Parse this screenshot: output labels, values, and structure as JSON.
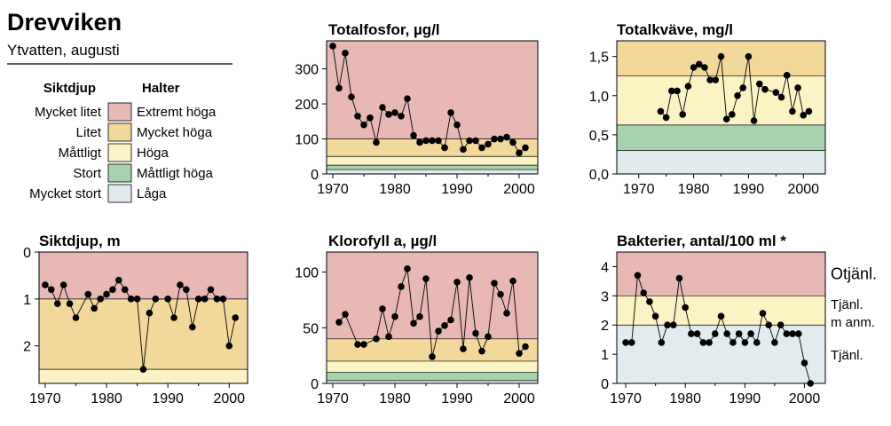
{
  "header": {
    "title": "Drevviken",
    "subtitle": "Ytvatten, augusti"
  },
  "legend": {
    "left_heading": "Siktdjup",
    "right_heading": "Halter",
    "rows": [
      {
        "left": "Mycket litet",
        "right": "Extremt höga",
        "color": "#e8b8b4"
      },
      {
        "left": "Litet",
        "right": "Mycket höga",
        "color": "#f3d89c"
      },
      {
        "left": "Måttligt",
        "right": "Höga",
        "color": "#fbf3c3"
      },
      {
        "left": "Stort",
        "right": "Måttligt höga",
        "color": "#a6d2ad"
      },
      {
        "left": "Mycket stort",
        "right": "Låga",
        "color": "#e1ebee"
      }
    ]
  },
  "colors": {
    "extremt": "#e8b8b4",
    "mycket": "#f3d89c",
    "hoga": "#fbf3c3",
    "mattligt": "#a6d2ad",
    "laga": "#e1ebee",
    "tjanl": "#e2ecef",
    "line": "#000000"
  },
  "chart_data": [
    {
      "id": "totalfosfor",
      "type": "line",
      "title": "Totalfosfor, µg/l",
      "xlim": [
        1969,
        2003
      ],
      "ylim": [
        0,
        380
      ],
      "xticks": [
        1970,
        1980,
        1990,
        2000
      ],
      "yticks": [
        0,
        100,
        200,
        300
      ],
      "ytick_labels": [
        "0",
        "100",
        "200",
        "300"
      ],
      "bands": [
        {
          "from": 0,
          "to": 12.5,
          "color": "laga"
        },
        {
          "from": 12.5,
          "to": 25,
          "color": "mattligt"
        },
        {
          "from": 25,
          "to": 50,
          "color": "hoga"
        },
        {
          "from": 50,
          "to": 100,
          "color": "mycket"
        },
        {
          "from": 100,
          "to": 380,
          "color": "extremt"
        }
      ],
      "x": [
        1970,
        1971,
        1972,
        1973,
        1974,
        1975,
        1976,
        1977,
        1978,
        1979,
        1980,
        1981,
        1982,
        1983,
        1984,
        1985,
        1986,
        1987,
        1988,
        1989,
        1990,
        1991,
        1992,
        1993,
        1994,
        1995,
        1996,
        1997,
        1998,
        1999,
        2000,
        2001
      ],
      "y": [
        365,
        245,
        345,
        220,
        165,
        140,
        160,
        90,
        190,
        170,
        175,
        165,
        215,
        110,
        90,
        95,
        95,
        95,
        75,
        175,
        140,
        70,
        95,
        95,
        75,
        85,
        100,
        100,
        105,
        90,
        60,
        75
      ]
    },
    {
      "id": "totalkvave",
      "type": "line",
      "title": "Totalkväve, mg/l",
      "xlim": [
        1966,
        2004
      ],
      "ylim": [
        0,
        1.7
      ],
      "xticks": [
        1970,
        1980,
        1990,
        2000
      ],
      "yticks": [
        0,
        0.5,
        1.0,
        1.5
      ],
      "ytick_labels": [
        "0,0",
        "0,5",
        "1,0",
        "1,5"
      ],
      "bands": [
        {
          "from": 0,
          "to": 0.3,
          "color": "laga"
        },
        {
          "from": 0.3,
          "to": 0.625,
          "color": "mattligt"
        },
        {
          "from": 0.625,
          "to": 1.25,
          "color": "hoga"
        },
        {
          "from": 1.25,
          "to": 1.7,
          "color": "mycket"
        }
      ],
      "x": [
        1974,
        1975,
        1976,
        1977,
        1978,
        1979,
        1980,
        1981,
        1982,
        1983,
        1984,
        1985,
        1986,
        1987,
        1988,
        1989,
        1990,
        1991,
        1992,
        1993,
        1995,
        1996,
        1997,
        1998,
        1999,
        2000,
        2001
      ],
      "y": [
        0.8,
        0.72,
        1.06,
        1.06,
        0.76,
        1.12,
        1.36,
        1.4,
        1.36,
        1.2,
        1.2,
        1.5,
        0.7,
        0.76,
        1.0,
        1.1,
        1.5,
        0.68,
        1.15,
        1.08,
        1.04,
        0.98,
        1.26,
        0.8,
        1.1,
        0.75,
        0.8
      ]
    },
    {
      "id": "siktdjup",
      "type": "line",
      "title": "Siktdjup, m",
      "xlim": [
        1969,
        2003
      ],
      "ylim": [
        0,
        2.8
      ],
      "y_inverted": true,
      "xticks": [
        1970,
        1980,
        1990,
        2000
      ],
      "yticks": [
        0,
        1,
        2
      ],
      "ytick_labels": [
        "0",
        "1",
        "2"
      ],
      "bands": [
        {
          "from": 0,
          "to": 1.0,
          "color": "extremt"
        },
        {
          "from": 1.0,
          "to": 2.5,
          "color": "mycket"
        },
        {
          "from": 2.5,
          "to": 2.8,
          "color": "hoga"
        }
      ],
      "x": [
        1970,
        1971,
        1972,
        1973,
        1974,
        1975,
        1977,
        1978,
        1979,
        1980,
        1981,
        1982,
        1983,
        1984,
        1985,
        1986,
        1987,
        1988,
        1990,
        1991,
        1992,
        1993,
        1994,
        1995,
        1996,
        1997,
        1998,
        1999,
        2000,
        2001
      ],
      "y": [
        0.7,
        0.8,
        1.1,
        0.7,
        1.1,
        1.4,
        0.9,
        1.2,
        1.0,
        0.9,
        0.8,
        0.6,
        0.8,
        1.0,
        1.0,
        2.5,
        1.3,
        1.0,
        1.0,
        1.4,
        0.7,
        0.8,
        1.6,
        1.0,
        1.0,
        0.8,
        1.0,
        1.0,
        2.0,
        1.4
      ]
    },
    {
      "id": "klorofyll",
      "type": "line",
      "title": "Klorofyll a, µg/l",
      "xlim": [
        1969,
        2003
      ],
      "ylim": [
        0,
        118
      ],
      "xticks": [
        1970,
        1980,
        1990,
        2000
      ],
      "yticks": [
        0,
        50,
        100
      ],
      "ytick_labels": [
        "0",
        "50",
        "100"
      ],
      "bands": [
        {
          "from": 0,
          "to": 2.5,
          "color": "laga"
        },
        {
          "from": 2.5,
          "to": 10,
          "color": "mattligt"
        },
        {
          "from": 10,
          "to": 20,
          "color": "hoga"
        },
        {
          "from": 20,
          "to": 40,
          "color": "mycket"
        },
        {
          "from": 40,
          "to": 118,
          "color": "extremt"
        }
      ],
      "x": [
        1971,
        1972,
        1974,
        1975,
        1977,
        1978,
        1979,
        1980,
        1981,
        1982,
        1983,
        1984,
        1985,
        1986,
        1987,
        1988,
        1989,
        1990,
        1991,
        1992,
        1993,
        1994,
        1995,
        1996,
        1997,
        1998,
        1999,
        2000,
        2001
      ],
      "y": [
        55,
        62,
        35,
        35,
        40,
        67,
        42,
        60,
        87,
        103,
        54,
        60,
        94,
        24,
        47,
        52,
        57,
        91,
        31,
        95,
        45,
        29,
        42,
        90,
        80,
        63,
        92,
        27,
        33
      ]
    },
    {
      "id": "bakterier",
      "type": "line",
      "title": "Bakterier, antal/100 ml *",
      "xlim": [
        1968.5,
        2003.5
      ],
      "ylim": [
        0,
        4.5
      ],
      "xticks": [
        1970,
        1980,
        1990,
        2000
      ],
      "yticks": [
        0,
        1,
        2,
        3,
        4
      ],
      "ytick_labels": [
        "0",
        "1",
        "2",
        "3",
        "4"
      ],
      "bands": [
        {
          "from": 0,
          "to": 2,
          "color": "tjanl"
        },
        {
          "from": 2,
          "to": 3,
          "color": "hoga"
        },
        {
          "from": 3,
          "to": 4.5,
          "color": "extremt"
        }
      ],
      "band_labels": [
        "Otjänl.",
        "Tjänl.",
        "m anm.",
        "Tjänl."
      ],
      "x": [
        1970,
        1971,
        1972,
        1973,
        1974,
        1975,
        1976,
        1977,
        1978,
        1979,
        1980,
        1981,
        1982,
        1983,
        1984,
        1985,
        1986,
        1987,
        1988,
        1989,
        1990,
        1991,
        1992,
        1993,
        1994,
        1995,
        1996,
        1997,
        1998,
        1999,
        2000,
        2001
      ],
      "y": [
        1.4,
        1.4,
        3.7,
        3.1,
        2.8,
        2.3,
        1.4,
        2.0,
        2.0,
        3.6,
        2.6,
        1.7,
        1.7,
        1.4,
        1.4,
        1.7,
        2.3,
        1.7,
        1.4,
        1.7,
        1.4,
        1.7,
        1.4,
        2.4,
        2.0,
        1.4,
        2.0,
        1.7,
        1.7,
        1.7,
        0.7,
        0.0
      ]
    }
  ]
}
